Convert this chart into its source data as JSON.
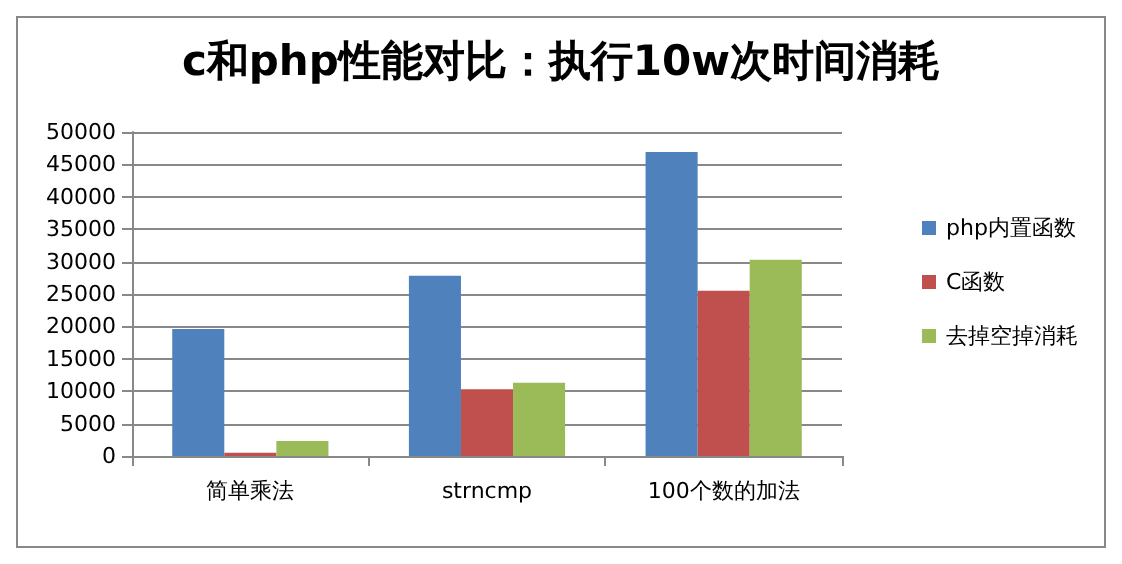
{
  "chart_data": {
    "type": "bar",
    "title": "c和php性能对比：执行10w次时间消耗",
    "categories": [
      "简单乘法",
      "strncmp",
      "100个数的加法"
    ],
    "series": [
      {
        "name": "php内置函数",
        "color": "#4f81bd",
        "values": [
          19600,
          27800,
          46900
        ]
      },
      {
        "name": "C函数",
        "color": "#c0504d",
        "values": [
          500,
          10300,
          25500
        ]
      },
      {
        "name": "去掉空掉消耗",
        "color": "#9bbb59",
        "values": [
          2300,
          11300,
          30300
        ]
      }
    ],
    "ylim": [
      0,
      50000
    ],
    "yticks": [
      0,
      5000,
      10000,
      15000,
      20000,
      25000,
      30000,
      35000,
      40000,
      45000,
      50000
    ],
    "grid": "y",
    "legend": "right"
  }
}
